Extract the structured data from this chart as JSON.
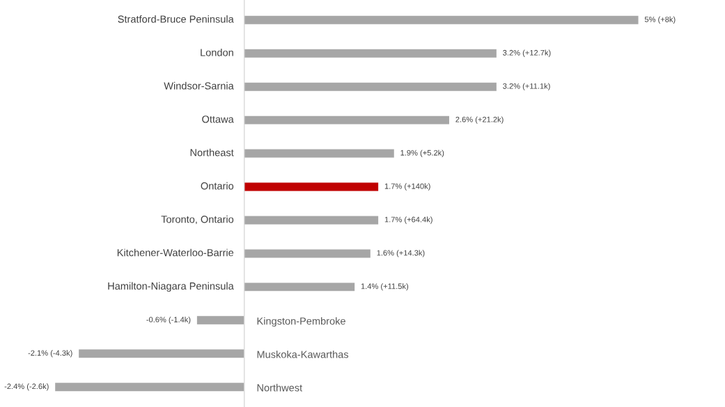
{
  "chart_data": {
    "type": "bar",
    "orientation": "horizontal",
    "categories": [
      "Stratford-Bruce Peninsula",
      "London",
      "Windsor-Sarnia",
      "Ottawa",
      "Northeast",
      "Ontario",
      "Toronto, Ontario",
      "Kitchener-Waterloo-Barrie",
      "Hamilton-Niagara Peninsula",
      "Kingston-Pembroke",
      "Muskoka-Kawarthas",
      "Northwest"
    ],
    "values": [
      5,
      3.2,
      3.2,
      2.6,
      1.9,
      1.7,
      1.7,
      1.6,
      1.4,
      -0.6,
      -2.1,
      -2.4
    ],
    "colors": [
      "#a6a6a6",
      "#a6a6a6",
      "#a6a6a6",
      "#a6a6a6",
      "#a6a6a6",
      "#c00000",
      "#a6a6a6",
      "#a6a6a6",
      "#a6a6a6",
      "#a6a6a6",
      "#a6a6a6",
      "#a6a6a6"
    ],
    "value_labels": [
      "5% (+8k)",
      "3.2% (+12.7k)",
      "3.2% (+11.1k)",
      "2.6% (+21.2k)",
      "1.9% (+5.2k)",
      "1.7% (+140k)",
      "1.7% (+64.4k)",
      "1.6% (+14.3k)",
      "1.4% (+11.5k)",
      "-0.6% (-1.4k)",
      "-2.1% (-4.3k)",
      "-2.4% (-2.6k)"
    ],
    "xlim": [
      -3.1,
      6.1
    ]
  }
}
